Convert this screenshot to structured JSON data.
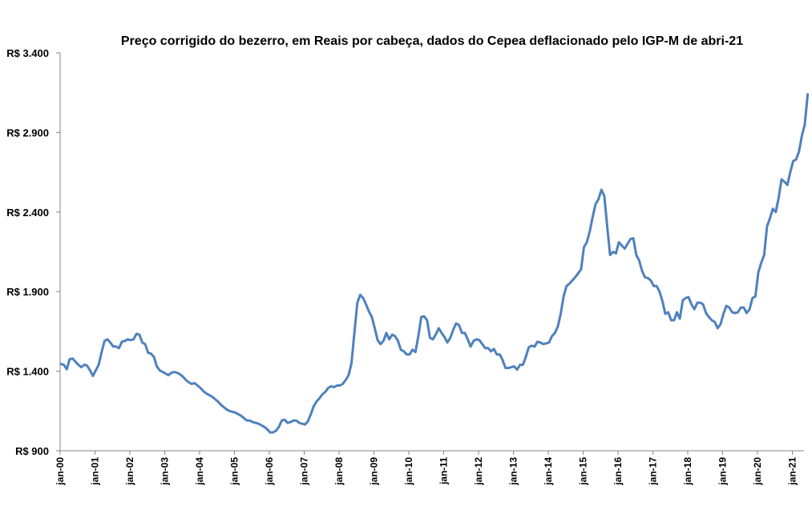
{
  "chart_data": {
    "type": "line",
    "title": "Preço corrigido do bezerro, em Reais por cabeça, dados do Cepea deflacionado pelo IGP-M de abri-21",
    "xlabel": "",
    "ylabel": "",
    "ylim": [
      900,
      3400
    ],
    "yticks": [
      {
        "value": 900,
        "label": "R$ 900"
      },
      {
        "value": 1400,
        "label": "R$ 1.400"
      },
      {
        "value": 1900,
        "label": "R$ 1.900"
      },
      {
        "value": 2400,
        "label": "R$ 2.400"
      },
      {
        "value": 2900,
        "label": "R$ 2.900"
      },
      {
        "value": 3400,
        "label": "R$ 3.400"
      }
    ],
    "xticks": [
      "jan-00",
      "jan-01",
      "jan-02",
      "jan-03",
      "jan-04",
      "jan-05",
      "jan-06",
      "jan-07",
      "jan-08",
      "jan-09",
      "jan-10",
      "jan-11",
      "jan-12",
      "jan-13",
      "jan-14",
      "jan-15",
      "jan-16",
      "jan-17",
      "jan-18",
      "jan-19",
      "jan-20",
      "jan-21"
    ],
    "x_start": "2000-01",
    "x_frequency": "monthly",
    "grid": false,
    "legend": "none",
    "line_color": "#4F81BD",
    "series": [
      {
        "values": [
          1445,
          1440,
          1412,
          1475,
          1480,
          1460,
          1440,
          1425,
          1440,
          1435,
          1405,
          1370,
          1405,
          1440,
          1520,
          1590,
          1600,
          1580,
          1555,
          1555,
          1545,
          1585,
          1590,
          1600,
          1595,
          1600,
          1635,
          1630,
          1580,
          1570,
          1515,
          1510,
          1490,
          1430,
          1405,
          1395,
          1385,
          1375,
          1390,
          1395,
          1390,
          1380,
          1365,
          1345,
          1330,
          1320,
          1325,
          1310,
          1295,
          1275,
          1260,
          1250,
          1240,
          1225,
          1210,
          1190,
          1175,
          1160,
          1150,
          1145,
          1140,
          1130,
          1120,
          1105,
          1090,
          1090,
          1080,
          1075,
          1070,
          1060,
          1050,
          1035,
          1015,
          1015,
          1025,
          1050,
          1090,
          1095,
          1075,
          1080,
          1090,
          1090,
          1075,
          1070,
          1065,
          1085,
          1130,
          1180,
          1210,
          1230,
          1255,
          1270,
          1295,
          1305,
          1300,
          1310,
          1310,
          1320,
          1345,
          1375,
          1450,
          1640,
          1830,
          1880,
          1860,
          1820,
          1775,
          1740,
          1670,
          1595,
          1570,
          1590,
          1640,
          1600,
          1630,
          1620,
          1590,
          1535,
          1525,
          1505,
          1505,
          1535,
          1520,
          1620,
          1740,
          1745,
          1720,
          1610,
          1600,
          1630,
          1670,
          1640,
          1615,
          1580,
          1610,
          1660,
          1700,
          1690,
          1640,
          1640,
          1600,
          1555,
          1590,
          1600,
          1595,
          1570,
          1545,
          1545,
          1525,
          1540,
          1505,
          1505,
          1470,
          1420,
          1420,
          1425,
          1430,
          1410,
          1440,
          1440,
          1490,
          1550,
          1560,
          1555,
          1585,
          1580,
          1570,
          1575,
          1580,
          1620,
          1640,
          1680,
          1760,
          1870,
          1935,
          1950,
          1970,
          1990,
          2015,
          2040,
          2180,
          2210,
          2280,
          2370,
          2450,
          2480,
          2540,
          2500,
          2310,
          2130,
          2150,
          2140,
          2210,
          2190,
          2170,
          2200,
          2230,
          2235,
          2130,
          2095,
          2030,
          1990,
          1985,
          1970,
          1935,
          1935,
          1900,
          1840,
          1760,
          1770,
          1720,
          1720,
          1770,
          1730,
          1845,
          1860,
          1865,
          1820,
          1790,
          1830,
          1830,
          1820,
          1765,
          1740,
          1720,
          1710,
          1670,
          1695,
          1760,
          1810,
          1800,
          1770,
          1765,
          1770,
          1800,
          1800,
          1765,
          1790,
          1860,
          1870,
          2020,
          2080,
          2130,
          2310,
          2360,
          2420,
          2400,
          2490,
          2605,
          2590,
          2570,
          2650,
          2720,
          2730,
          2780,
          2880,
          2950,
          3140
        ]
      }
    ]
  }
}
